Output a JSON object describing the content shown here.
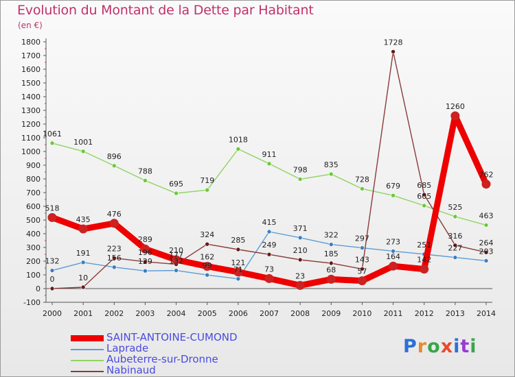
{
  "header": {
    "title": "Evolution du Montant de la Dette par Habitant",
    "unit": "(en €)"
  },
  "logo": {
    "text": "Proxiti",
    "colors": [
      "#2d6fd6",
      "#e68a2e",
      "#3aa54a",
      "#e64a2e",
      "#2d6fd6",
      "#9a3ad0",
      "#3aa54a"
    ]
  },
  "chart_data": {
    "type": "line",
    "title": "Evolution du Montant de la Dette par Habitant",
    "ylabel": "(en €)",
    "xlabel": "",
    "ylim": [
      -100,
      1800
    ],
    "yticks": [
      -100,
      0,
      100,
      200,
      300,
      400,
      500,
      600,
      700,
      800,
      900,
      1000,
      1100,
      1200,
      1300,
      1400,
      1500,
      1600,
      1700,
      1800
    ],
    "grid": false,
    "legend_position": "bottom-left",
    "x": [
      2000,
      2001,
      2002,
      2003,
      2004,
      2005,
      2006,
      2007,
      2008,
      2009,
      2010,
      2011,
      2012,
      2013,
      2014
    ],
    "series": [
      {
        "name": "SAINT-ANTOINE-CUMOND",
        "color": "#ee0000",
        "point_color": "#cc2222",
        "values": [
          518,
          435,
          476,
          289,
          210,
          162,
          121,
          73,
          23,
          68,
          57,
          164,
          142,
          1260,
          762
        ],
        "labels": [
          "518",
          "435",
          "476",
          "289",
          "210",
          "162",
          "121",
          "73",
          "23",
          "68",
          "57",
          "164",
          "142",
          "1260",
          "762"
        ]
      },
      {
        "name": "Laprade",
        "color": "#5b9bd5",
        "point_color": "#3b7ec0",
        "values": [
          132,
          191,
          156,
          129,
          132,
          99,
          71,
          415,
          371,
          322,
          297,
          273,
          251,
          227,
          203
        ],
        "labels": [
          "132",
          "191",
          "156",
          "129",
          "132",
          "99",
          "71",
          "415",
          "371",
          "322",
          "297",
          "273",
          "251",
          "227",
          "203"
        ]
      },
      {
        "name": "Aubeterre-sur-Dronne",
        "color": "#8fd460",
        "point_color": "#6cc83a",
        "values": [
          1061,
          1001,
          896,
          788,
          695,
          719,
          1018,
          911,
          798,
          835,
          728,
          679,
          605,
          525,
          463
        ],
        "labels": [
          "1061",
          "1001",
          "896",
          "788",
          "695",
          "719",
          "1018",
          "911",
          "798",
          "835",
          "728",
          "679",
          "605",
          "525",
          "463"
        ]
      },
      {
        "name": "Nabinaud",
        "color": "#8a3a3a",
        "point_color": "#6a1a1a",
        "values": [
          0,
          10,
          223,
          196,
          177,
          324,
          285,
          249,
          210,
          185,
          143,
          1728,
          685,
          316,
          264
        ],
        "labels": [
          "0",
          "10",
          "223",
          "196",
          "177",
          "324",
          "285",
          "249",
          "210",
          "185",
          "143",
          "1728",
          "685",
          "316",
          "264"
        ]
      }
    ]
  }
}
